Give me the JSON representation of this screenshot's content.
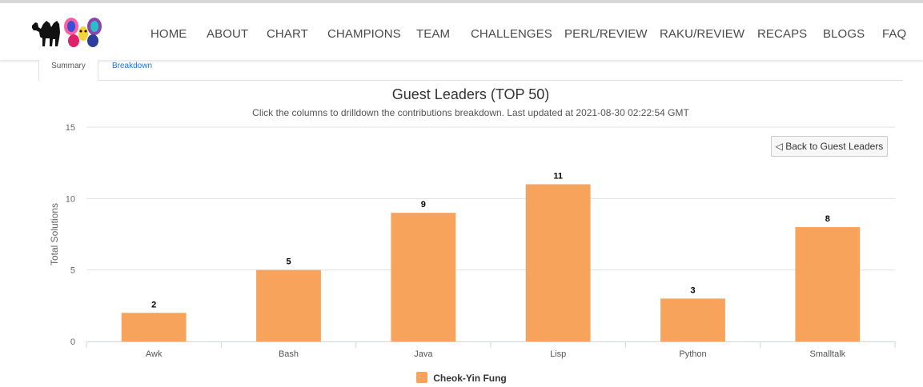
{
  "nav": {
    "items": [
      "HOME",
      "ABOUT",
      "CHART",
      "CHAMPIONS",
      "TEAM",
      "CHALLENGES",
      "PERL/REVIEW",
      "RAKU/REVIEW",
      "RECAPS",
      "BLOGS",
      "FAQ"
    ]
  },
  "tabs": {
    "summary": "Summary",
    "breakdown": "Breakdown"
  },
  "back_button": "◁ Back to Guest Leaders",
  "chart_data": {
    "type": "bar",
    "title": "Guest Leaders (TOP 50)",
    "subtitle": "Click the columns to drilldown the contributions breakdown. Last updated at 2021-08-30 02:22:54 GMT",
    "xlabel": "",
    "ylabel": "Total Solutions",
    "ylim": [
      0,
      15
    ],
    "yticks": [
      0,
      5,
      10,
      15
    ],
    "grid": true,
    "legend_position": "bottom-center",
    "categories": [
      "Awk",
      "Bash",
      "Java",
      "Lisp",
      "Python",
      "Smalltalk"
    ],
    "series": [
      {
        "name": "Cheok-Yin Fung",
        "values": [
          2,
          5,
          9,
          11,
          3,
          8
        ],
        "color": "#f7a35c"
      }
    ],
    "data_labels": true
  }
}
